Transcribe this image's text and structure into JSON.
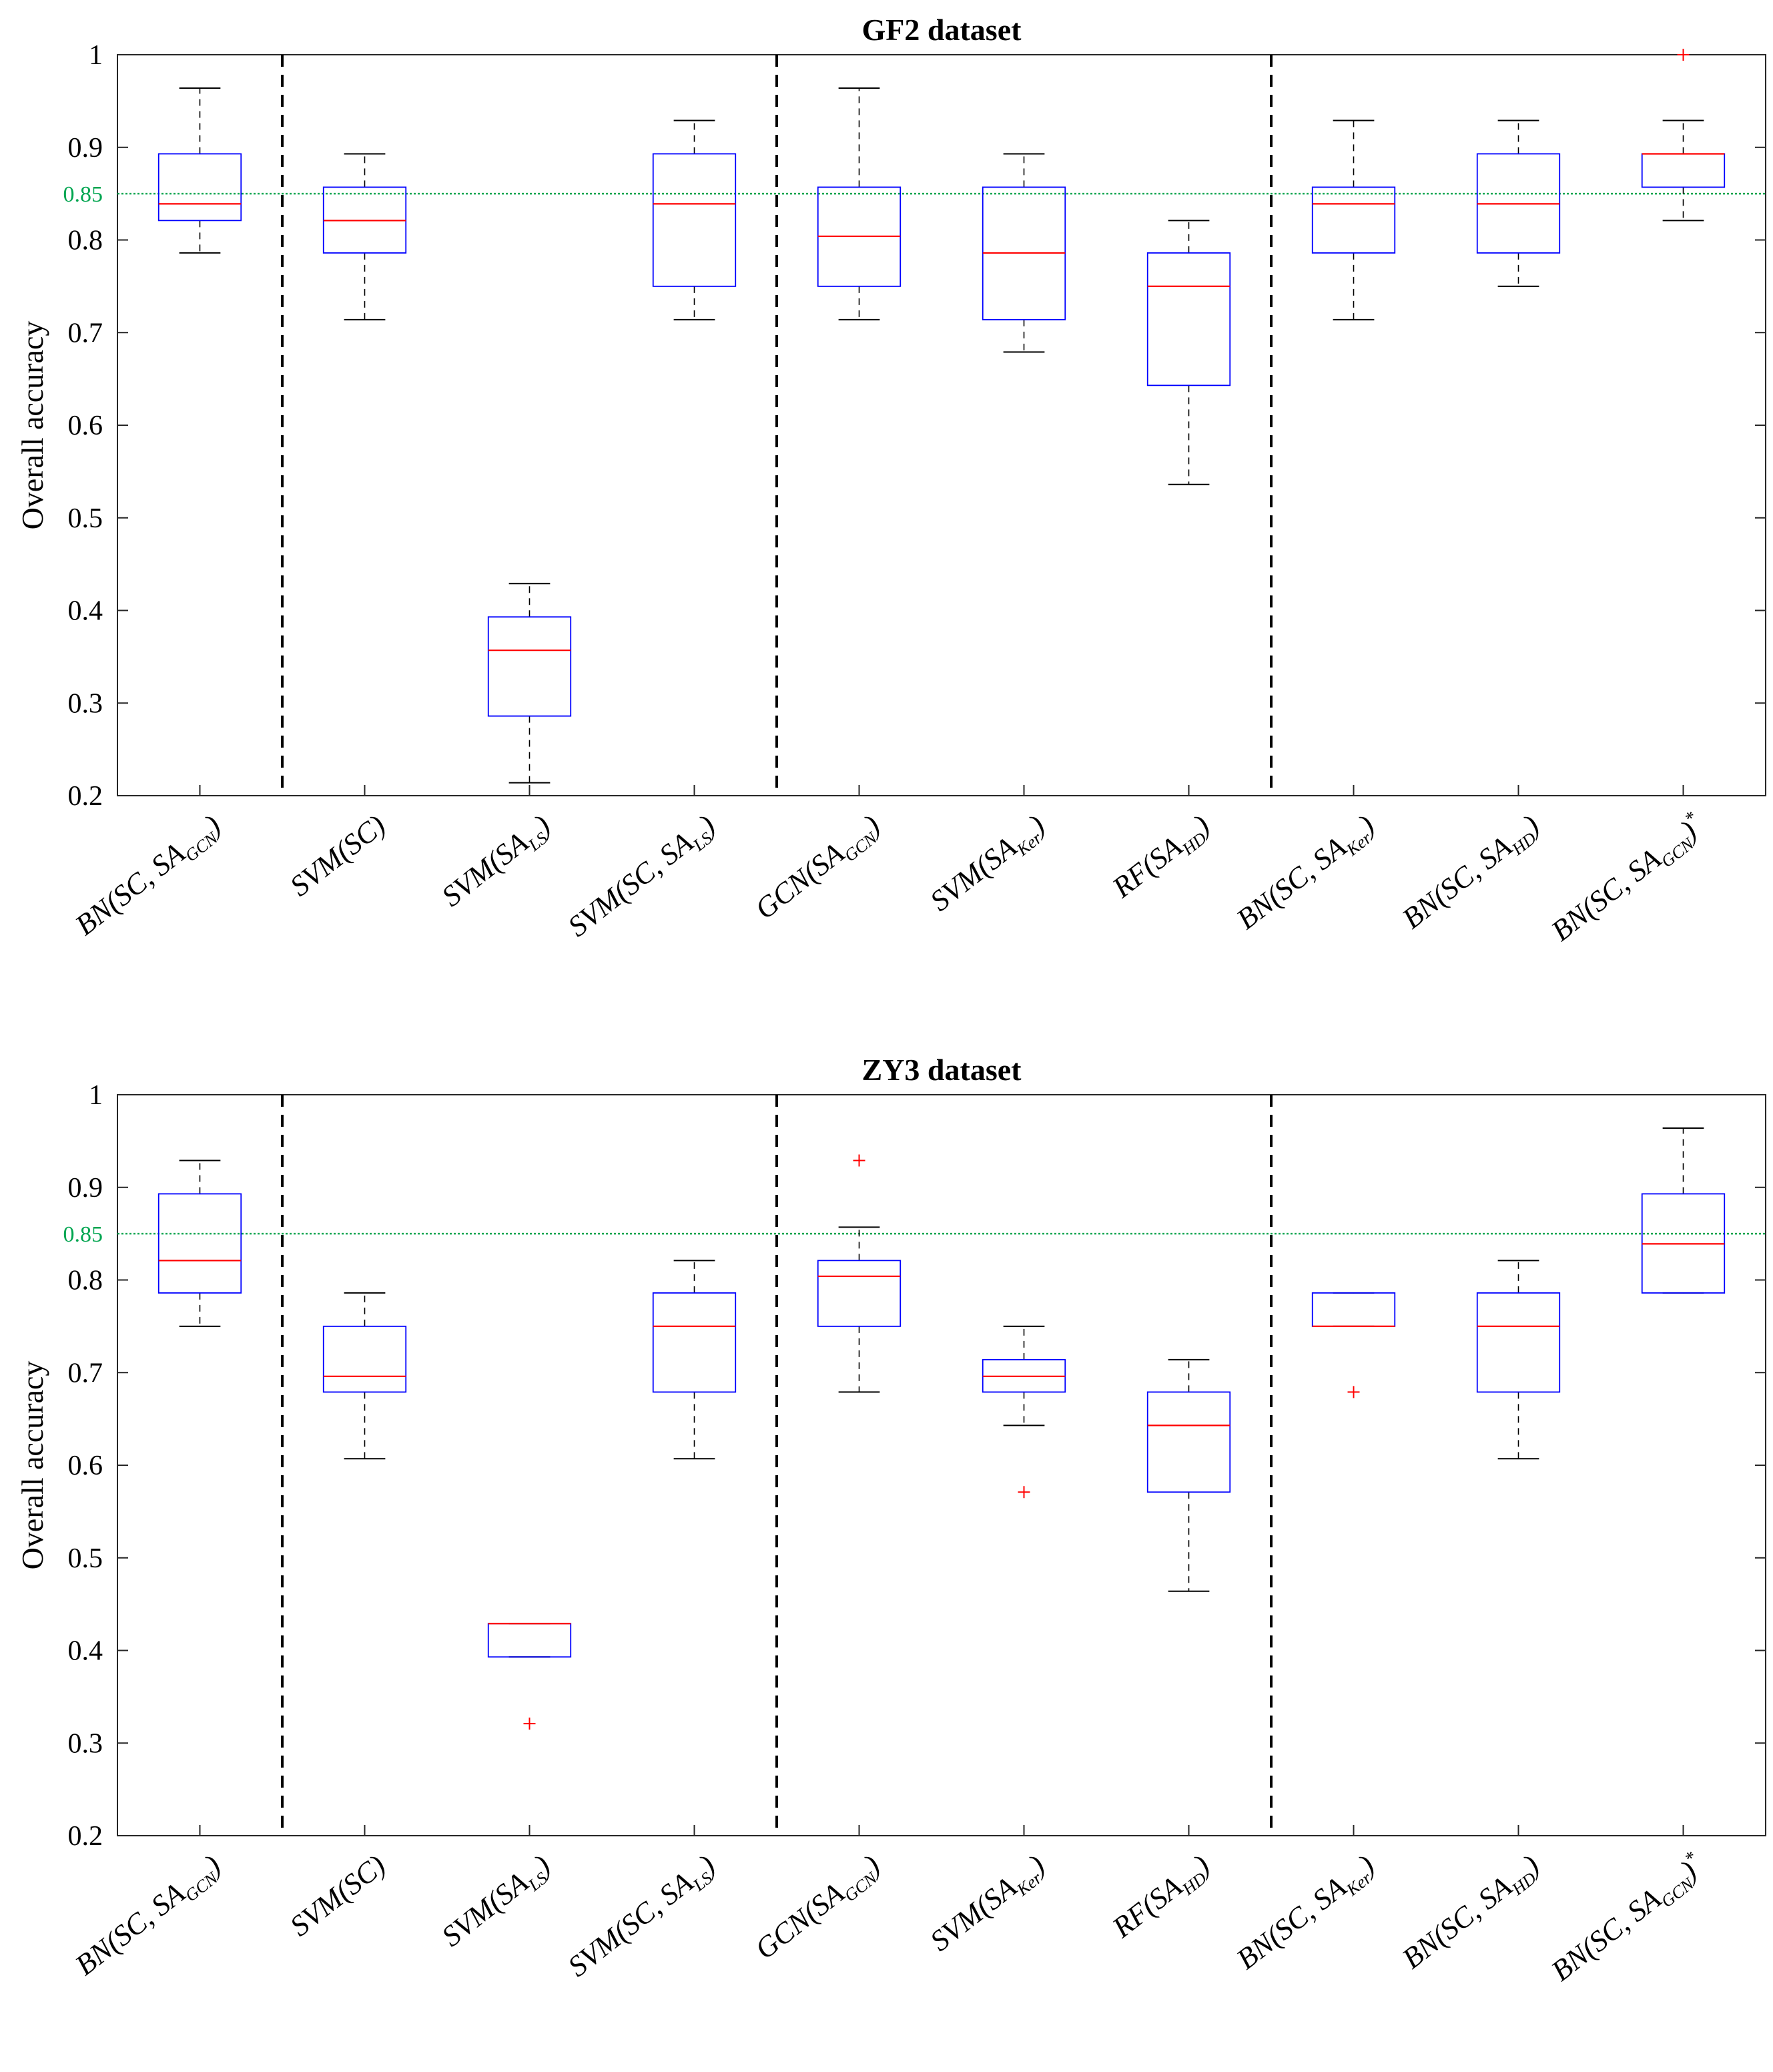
{
  "chart_data": [
    {
      "type": "boxplot",
      "title": "GF2 dataset",
      "ylabel": "Overall accuracy",
      "xlabel": "",
      "ylim": [
        0.2,
        1
      ],
      "yticks": [
        "0.2",
        "0.3",
        "0.4",
        "0.5",
        "0.6",
        "0.7",
        "0.8",
        "0.9",
        "1"
      ],
      "reference_line": {
        "value": 0.85,
        "label": "0.85",
        "color": "#00a550"
      },
      "group_separators_after": [
        1,
        4,
        7
      ],
      "categories": [
        {
          "base": "BN(SC, SA",
          "sub": "GCN",
          "tail": ")",
          "sup": ""
        },
        {
          "base": "SVM(SC)",
          "sub": "",
          "tail": "",
          "sup": ""
        },
        {
          "base": "SVM(SA",
          "sub": "LS",
          "tail": ")",
          "sup": ""
        },
        {
          "base": "SVM(SC, SA",
          "sub": "LS",
          "tail": ")",
          "sup": ""
        },
        {
          "base": "GCN(SA",
          "sub": "GCN",
          "tail": ")",
          "sup": ""
        },
        {
          "base": "SVM(SA",
          "sub": "Ker",
          "tail": ")",
          "sup": ""
        },
        {
          "base": "RF(SA",
          "sub": "HD",
          "tail": ")",
          "sup": ""
        },
        {
          "base": "BN(SC, SA",
          "sub": "Ker",
          "tail": ")",
          "sup": ""
        },
        {
          "base": "BN(SC, SA",
          "sub": "HD",
          "tail": ")",
          "sup": ""
        },
        {
          "base": "BN(SC, SA",
          "sub": "GCN",
          "tail": ")",
          "sup": "*"
        }
      ],
      "boxes": [
        {
          "whisker_low": 0.786,
          "q1": 0.821,
          "median": 0.839,
          "q3": 0.893,
          "whisker_high": 0.964,
          "outliers": []
        },
        {
          "whisker_low": 0.714,
          "q1": 0.786,
          "median": 0.821,
          "q3": 0.857,
          "whisker_high": 0.893,
          "outliers": []
        },
        {
          "whisker_low": 0.214,
          "q1": 0.286,
          "median": 0.357,
          "q3": 0.393,
          "whisker_high": 0.429,
          "outliers": []
        },
        {
          "whisker_low": 0.714,
          "q1": 0.75,
          "median": 0.839,
          "q3": 0.893,
          "whisker_high": 0.929,
          "outliers": []
        },
        {
          "whisker_low": 0.714,
          "q1": 0.75,
          "median": 0.804,
          "q3": 0.857,
          "whisker_high": 0.964,
          "outliers": []
        },
        {
          "whisker_low": 0.679,
          "q1": 0.714,
          "median": 0.786,
          "q3": 0.857,
          "whisker_high": 0.893,
          "outliers": []
        },
        {
          "whisker_low": 0.536,
          "q1": 0.643,
          "median": 0.75,
          "q3": 0.786,
          "whisker_high": 0.821,
          "outliers": []
        },
        {
          "whisker_low": 0.714,
          "q1": 0.786,
          "median": 0.839,
          "q3": 0.857,
          "whisker_high": 0.929,
          "outliers": []
        },
        {
          "whisker_low": 0.75,
          "q1": 0.786,
          "median": 0.839,
          "q3": 0.893,
          "whisker_high": 0.929,
          "outliers": []
        },
        {
          "whisker_low": 0.821,
          "q1": 0.857,
          "median": 0.893,
          "q3": 0.893,
          "whisker_high": 0.929,
          "outliers": [
            1.0
          ]
        }
      ]
    },
    {
      "type": "boxplot",
      "title": "ZY3 dataset",
      "ylabel": "Overall accuracy",
      "xlabel": "",
      "ylim": [
        0.2,
        1
      ],
      "yticks": [
        "0.2",
        "0.3",
        "0.4",
        "0.5",
        "0.6",
        "0.7",
        "0.8",
        "0.9",
        "1"
      ],
      "reference_line": {
        "value": 0.85,
        "label": "0.85",
        "color": "#00a550"
      },
      "group_separators_after": [
        1,
        4,
        7
      ],
      "categories": [
        {
          "base": "BN(SC, SA",
          "sub": "GCN",
          "tail": ")",
          "sup": ""
        },
        {
          "base": "SVM(SC)",
          "sub": "",
          "tail": "",
          "sup": ""
        },
        {
          "base": "SVM(SA",
          "sub": "LS",
          "tail": ")",
          "sup": ""
        },
        {
          "base": "SVM(SC, SA",
          "sub": "LS",
          "tail": ")",
          "sup": ""
        },
        {
          "base": "GCN(SA",
          "sub": "GCN",
          "tail": ")",
          "sup": ""
        },
        {
          "base": "SVM(SA",
          "sub": "Ker",
          "tail": ")",
          "sup": ""
        },
        {
          "base": "RF(SA",
          "sub": "HD",
          "tail": ")",
          "sup": ""
        },
        {
          "base": "BN(SC, SA",
          "sub": "Ker",
          "tail": ")",
          "sup": ""
        },
        {
          "base": "BN(SC, SA",
          "sub": "HD",
          "tail": ")",
          "sup": ""
        },
        {
          "base": "BN(SC, SA",
          "sub": "GCN",
          "tail": ")",
          "sup": "*"
        }
      ],
      "boxes": [
        {
          "whisker_low": 0.75,
          "q1": 0.786,
          "median": 0.821,
          "q3": 0.893,
          "whisker_high": 0.929,
          "outliers": []
        },
        {
          "whisker_low": 0.607,
          "q1": 0.679,
          "median": 0.696,
          "q3": 0.75,
          "whisker_high": 0.786,
          "outliers": []
        },
        {
          "whisker_low": 0.393,
          "q1": 0.393,
          "median": 0.429,
          "q3": 0.429,
          "whisker_high": 0.429,
          "outliers": [
            0.321
          ]
        },
        {
          "whisker_low": 0.607,
          "q1": 0.679,
          "median": 0.75,
          "q3": 0.786,
          "whisker_high": 0.821,
          "outliers": []
        },
        {
          "whisker_low": 0.679,
          "q1": 0.75,
          "median": 0.804,
          "q3": 0.821,
          "whisker_high": 0.857,
          "outliers": [
            0.929
          ]
        },
        {
          "whisker_low": 0.643,
          "q1": 0.679,
          "median": 0.696,
          "q3": 0.714,
          "whisker_high": 0.75,
          "outliers": [
            0.571
          ]
        },
        {
          "whisker_low": 0.464,
          "q1": 0.571,
          "median": 0.643,
          "q3": 0.679,
          "whisker_high": 0.714,
          "outliers": []
        },
        {
          "whisker_low": 0.75,
          "q1": 0.75,
          "median": 0.75,
          "q3": 0.786,
          "whisker_high": 0.786,
          "outliers": [
            0.679
          ]
        },
        {
          "whisker_low": 0.607,
          "q1": 0.679,
          "median": 0.75,
          "q3": 0.786,
          "whisker_high": 0.821,
          "outliers": []
        },
        {
          "whisker_low": 0.786,
          "q1": 0.786,
          "median": 0.839,
          "q3": 0.893,
          "whisker_high": 0.964,
          "outliers": []
        }
      ]
    }
  ],
  "colors": {
    "box": "#0000ff",
    "median": "#ff0000",
    "whisker": "#000000",
    "outlier": "#ff0000",
    "reference": "#00a550",
    "separator": "#000000"
  }
}
